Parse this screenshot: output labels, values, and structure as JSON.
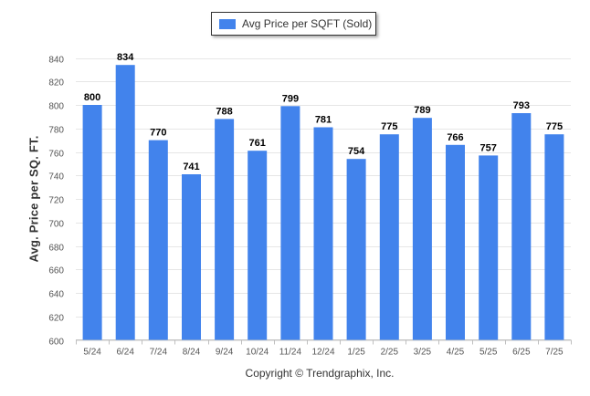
{
  "chart_data": {
    "type": "bar",
    "categories": [
      "5/24",
      "6/24",
      "7/24",
      "8/24",
      "9/24",
      "10/24",
      "11/24",
      "12/24",
      "1/25",
      "2/25",
      "3/25",
      "4/25",
      "5/25",
      "6/25",
      "7/25"
    ],
    "series": [
      {
        "name": "Avg Price per SQFT (Sold)",
        "values": [
          800,
          834,
          770,
          741,
          788,
          761,
          799,
          781,
          754,
          775,
          789,
          766,
          757,
          793,
          775
        ],
        "color": "#4283ec"
      }
    ],
    "ylabel": "Avg. Price per SQ. FT.",
    "xlabel": "",
    "ylim": [
      600,
      840
    ],
    "yticks": [
      600,
      620,
      640,
      660,
      680,
      700,
      720,
      740,
      760,
      780,
      800,
      820,
      840
    ],
    "grid": true,
    "legend": "top-center",
    "data_labels": true
  },
  "legend": {
    "label": "Avg Price per SQFT (Sold)"
  },
  "footer": {
    "copyright": "Copyright © Trendgraphix, Inc."
  }
}
